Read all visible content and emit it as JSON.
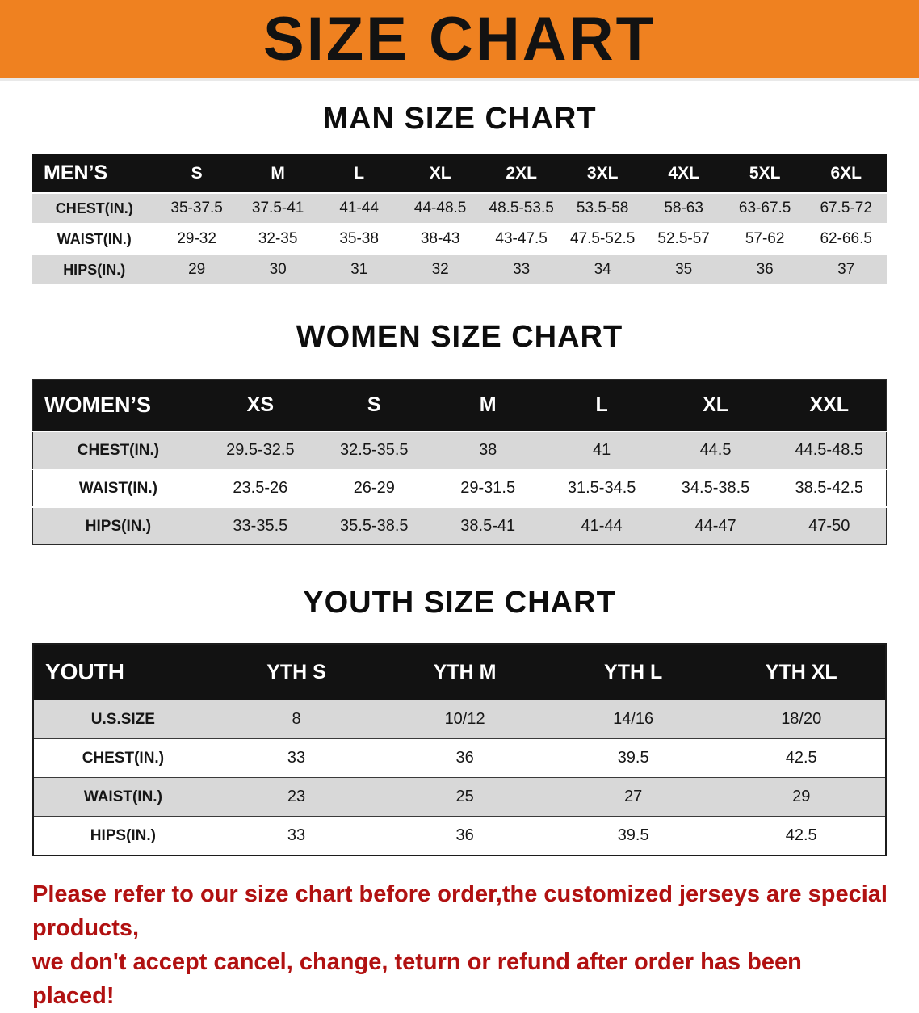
{
  "banner": {
    "title": "SIZE CHART",
    "bg_color": "#ef8120",
    "text_color": "#121212"
  },
  "colors": {
    "table_header_bg": "#121212",
    "table_header_text": "#ffffff",
    "row_stripe": "#d8d8d8",
    "footer_text": "#b11111"
  },
  "sections": [
    {
      "heading": "MAN SIZE CHART",
      "table": {
        "header": [
          "MEN’S",
          "S",
          "M",
          "L",
          "XL",
          "2XL",
          "3XL",
          "4XL",
          "5XL",
          "6XL"
        ],
        "rows": [
          [
            "CHEST(IN.)",
            "35-37.5",
            "37.5-41",
            "41-44",
            "44-48.5",
            "48.5-53.5",
            "53.5-58",
            "58-63",
            "63-67.5",
            "67.5-72"
          ],
          [
            "WAIST(IN.)",
            "29-32",
            "32-35",
            "35-38",
            "38-43",
            "43-47.5",
            "47.5-52.5",
            "52.5-57",
            "57-62",
            "62-66.5"
          ],
          [
            "HIPS(IN.)",
            "29",
            "30",
            "31",
            "32",
            "33",
            "34",
            "35",
            "36",
            "37"
          ]
        ]
      }
    },
    {
      "heading": "WOMEN SIZE CHART",
      "table": {
        "header": [
          "WOMEN’S",
          "XS",
          "S",
          "M",
          "L",
          "XL",
          "XXL"
        ],
        "rows": [
          [
            "CHEST(IN.)",
            "29.5-32.5",
            "32.5-35.5",
            "38",
            "41",
            "44.5",
            "44.5-48.5"
          ],
          [
            "WAIST(IN.)",
            "23.5-26",
            "26-29",
            "29-31.5",
            "31.5-34.5",
            "34.5-38.5",
            "38.5-42.5"
          ],
          [
            "HIPS(IN.)",
            "33-35.5",
            "35.5-38.5",
            "38.5-41",
            "41-44",
            "44-47",
            "47-50"
          ]
        ]
      }
    },
    {
      "heading": "YOUTH SIZE CHART",
      "table": {
        "header": [
          "YOUTH",
          "YTH S",
          "YTH M",
          "YTH L",
          "YTH XL"
        ],
        "rows": [
          [
            "U.S.SIZE",
            "8",
            "10/12",
            "14/16",
            "18/20"
          ],
          [
            "CHEST(IN.)",
            "33",
            "36",
            "39.5",
            "42.5"
          ],
          [
            "WAIST(IN.)",
            "23",
            "25",
            "27",
            "29"
          ],
          [
            "HIPS(IN.)",
            "33",
            "36",
            "39.5",
            "42.5"
          ]
        ]
      }
    }
  ],
  "footer": {
    "line1": "Please refer to our size chart before order,the customized jerseys are special products,",
    "line2": "we don't accept cancel, change, teturn or refund after order has been placed!"
  }
}
